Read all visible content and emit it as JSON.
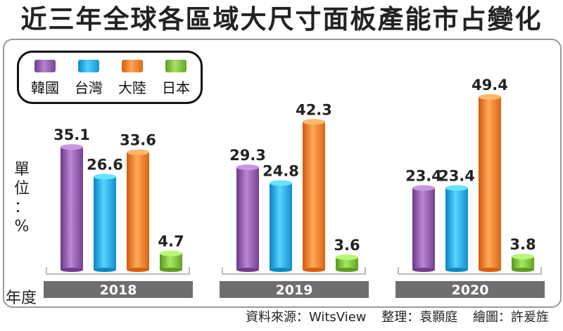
{
  "title": "近三年全球各區域大尺寸面板產能市占變化",
  "unit_label": [
    "單",
    "位",
    "：",
    "%"
  ],
  "year_label": "年度",
  "credits": {
    "source": "資料來源：WitsView",
    "editor": "整理：袁顥庭",
    "illustrator": "繪圖：許爰旌"
  },
  "colors": {
    "韓國": "#8e5aa8",
    "台灣": "#2aa7e0",
    "大陸": "#f47c2c",
    "日本": "#7cba3b"
  },
  "chart_data": {
    "type": "bar",
    "title": "近三年全球各區域大尺寸面板產能市占變化",
    "categories": [
      "2018",
      "2019",
      "2020"
    ],
    "series": [
      {
        "name": "韓國",
        "values": [
          35.1,
          29.3,
          23.4
        ]
      },
      {
        "name": "台灣",
        "values": [
          26.6,
          24.8,
          23.4
        ]
      },
      {
        "name": "大陸",
        "values": [
          33.6,
          42.3,
          49.4
        ]
      },
      {
        "name": "日本",
        "values": [
          4.7,
          3.6,
          3.8
        ]
      }
    ],
    "ylim": [
      0,
      55
    ],
    "grid": false,
    "legend": "top-left"
  }
}
